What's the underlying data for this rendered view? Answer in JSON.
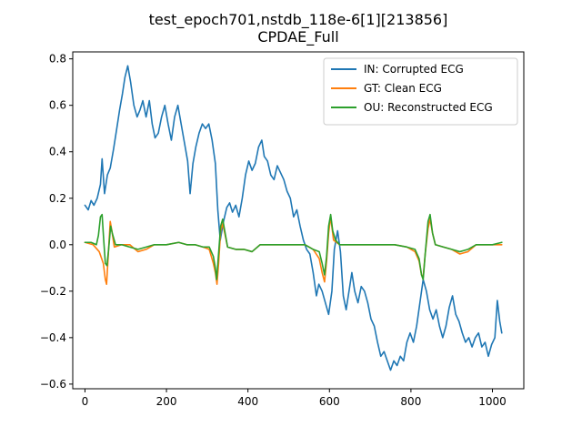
{
  "chart_data": {
    "type": "line",
    "title": "test_epoch701,nstdb_118e-6[1][213856]",
    "subtitle": "CPDAE_Full",
    "xlim": [
      -30,
      1077
    ],
    "ylim": [
      -0.62,
      0.83
    ],
    "x_ticks": [
      0,
      200,
      400,
      600,
      800,
      1000
    ],
    "y_ticks": [
      -0.6,
      -0.4,
      -0.2,
      0.0,
      0.2,
      0.4,
      0.6,
      0.8
    ],
    "x_tick_labels": [
      "0",
      "200",
      "400",
      "600",
      "800",
      "1000"
    ],
    "y_tick_labels": [
      "−0.6",
      "−0.4",
      "−0.2",
      "0.0",
      "0.2",
      "0.4",
      "0.6",
      "0.8"
    ],
    "grid": false,
    "legend_position": "upper right",
    "series": [
      {
        "name": "IN: Corrupted ECG",
        "color": "#1f77b4",
        "points": [
          [
            0,
            0.17
          ],
          [
            8,
            0.15
          ],
          [
            15,
            0.19
          ],
          [
            22,
            0.17
          ],
          [
            30,
            0.2
          ],
          [
            38,
            0.26
          ],
          [
            42,
            0.37
          ],
          [
            48,
            0.22
          ],
          [
            55,
            0.3
          ],
          [
            62,
            0.33
          ],
          [
            70,
            0.41
          ],
          [
            78,
            0.5
          ],
          [
            85,
            0.58
          ],
          [
            92,
            0.65
          ],
          [
            98,
            0.72
          ],
          [
            105,
            0.77
          ],
          [
            112,
            0.7
          ],
          [
            120,
            0.6
          ],
          [
            128,
            0.55
          ],
          [
            135,
            0.58
          ],
          [
            142,
            0.62
          ],
          [
            150,
            0.55
          ],
          [
            158,
            0.62
          ],
          [
            165,
            0.52
          ],
          [
            172,
            0.46
          ],
          [
            180,
            0.48
          ],
          [
            188,
            0.55
          ],
          [
            196,
            0.6
          ],
          [
            204,
            0.52
          ],
          [
            212,
            0.45
          ],
          [
            220,
            0.55
          ],
          [
            228,
            0.6
          ],
          [
            236,
            0.52
          ],
          [
            244,
            0.44
          ],
          [
            252,
            0.36
          ],
          [
            258,
            0.22
          ],
          [
            265,
            0.35
          ],
          [
            272,
            0.42
          ],
          [
            280,
            0.48
          ],
          [
            288,
            0.52
          ],
          [
            296,
            0.5
          ],
          [
            304,
            0.52
          ],
          [
            312,
            0.45
          ],
          [
            320,
            0.35
          ],
          [
            326,
            0.15
          ],
          [
            332,
            0.02
          ],
          [
            340,
            0.1
          ],
          [
            348,
            0.16
          ],
          [
            355,
            0.18
          ],
          [
            362,
            0.14
          ],
          [
            370,
            0.17
          ],
          [
            378,
            0.12
          ],
          [
            386,
            0.2
          ],
          [
            394,
            0.3
          ],
          [
            402,
            0.36
          ],
          [
            410,
            0.32
          ],
          [
            418,
            0.35
          ],
          [
            426,
            0.42
          ],
          [
            434,
            0.45
          ],
          [
            440,
            0.38
          ],
          [
            448,
            0.36
          ],
          [
            456,
            0.3
          ],
          [
            464,
            0.28
          ],
          [
            472,
            0.34
          ],
          [
            480,
            0.31
          ],
          [
            488,
            0.28
          ],
          [
            496,
            0.23
          ],
          [
            504,
            0.2
          ],
          [
            512,
            0.12
          ],
          [
            520,
            0.15
          ],
          [
            528,
            0.08
          ],
          [
            536,
            0.02
          ],
          [
            544,
            -0.02
          ],
          [
            552,
            -0.04
          ],
          [
            560,
            -0.12
          ],
          [
            568,
            -0.22
          ],
          [
            574,
            -0.17
          ],
          [
            582,
            -0.2
          ],
          [
            590,
            -0.25
          ],
          [
            598,
            -0.3
          ],
          [
            606,
            -0.2
          ],
          [
            612,
            -0.02
          ],
          [
            620,
            0.06
          ],
          [
            627,
            -0.03
          ],
          [
            634,
            -0.22
          ],
          [
            641,
            -0.28
          ],
          [
            648,
            -0.2
          ],
          [
            655,
            -0.12
          ],
          [
            662,
            -0.2
          ],
          [
            670,
            -0.25
          ],
          [
            678,
            -0.18
          ],
          [
            686,
            -0.2
          ],
          [
            694,
            -0.25
          ],
          [
            702,
            -0.32
          ],
          [
            710,
            -0.35
          ],
          [
            718,
            -0.42
          ],
          [
            726,
            -0.48
          ],
          [
            734,
            -0.46
          ],
          [
            742,
            -0.5
          ],
          [
            750,
            -0.54
          ],
          [
            758,
            -0.5
          ],
          [
            766,
            -0.52
          ],
          [
            774,
            -0.48
          ],
          [
            782,
            -0.5
          ],
          [
            790,
            -0.42
          ],
          [
            798,
            -0.38
          ],
          [
            806,
            -0.42
          ],
          [
            814,
            -0.35
          ],
          [
            822,
            -0.25
          ],
          [
            830,
            -0.15
          ],
          [
            838,
            -0.2
          ],
          [
            846,
            -0.28
          ],
          [
            854,
            -0.32
          ],
          [
            862,
            -0.28
          ],
          [
            870,
            -0.35
          ],
          [
            878,
            -0.4
          ],
          [
            886,
            -0.35
          ],
          [
            894,
            -0.27
          ],
          [
            902,
            -0.22
          ],
          [
            910,
            -0.3
          ],
          [
            918,
            -0.33
          ],
          [
            926,
            -0.38
          ],
          [
            934,
            -0.42
          ],
          [
            942,
            -0.4
          ],
          [
            950,
            -0.44
          ],
          [
            958,
            -0.4
          ],
          [
            966,
            -0.38
          ],
          [
            974,
            -0.44
          ],
          [
            982,
            -0.42
          ],
          [
            990,
            -0.48
          ],
          [
            998,
            -0.43
          ],
          [
            1006,
            -0.4
          ],
          [
            1012,
            -0.24
          ],
          [
            1018,
            -0.33
          ],
          [
            1023,
            -0.38
          ]
        ]
      },
      {
        "name": "GT: Clean ECG",
        "color": "#ff7f0e",
        "points": [
          [
            0,
            0.01
          ],
          [
            20,
            0.0
          ],
          [
            35,
            -0.03
          ],
          [
            45,
            -0.08
          ],
          [
            50,
            -0.15
          ],
          [
            53,
            -0.17
          ],
          [
            57,
            -0.05
          ],
          [
            62,
            0.1
          ],
          [
            66,
            0.06
          ],
          [
            72,
            -0.01
          ],
          [
            90,
            0.0
          ],
          [
            110,
            0.0
          ],
          [
            130,
            -0.03
          ],
          [
            150,
            -0.02
          ],
          [
            170,
            0.0
          ],
          [
            200,
            0.0
          ],
          [
            230,
            0.01
          ],
          [
            250,
            0.0
          ],
          [
            270,
            0.0
          ],
          [
            290,
            -0.01
          ],
          [
            305,
            -0.02
          ],
          [
            315,
            -0.08
          ],
          [
            320,
            -0.12
          ],
          [
            324,
            -0.17
          ],
          [
            328,
            -0.08
          ],
          [
            333,
            0.06
          ],
          [
            338,
            0.09
          ],
          [
            343,
            0.05
          ],
          [
            350,
            -0.01
          ],
          [
            370,
            -0.02
          ],
          [
            390,
            -0.02
          ],
          [
            410,
            -0.03
          ],
          [
            430,
            0.0
          ],
          [
            460,
            0.0
          ],
          [
            490,
            0.0
          ],
          [
            520,
            0.0
          ],
          [
            540,
            0.0
          ],
          [
            560,
            -0.02
          ],
          [
            575,
            -0.06
          ],
          [
            582,
            -0.12
          ],
          [
            588,
            -0.16
          ],
          [
            593,
            -0.07
          ],
          [
            598,
            0.05
          ],
          [
            603,
            0.12
          ],
          [
            610,
            0.02
          ],
          [
            625,
            0.0
          ],
          [
            650,
            0.0
          ],
          [
            680,
            0.0
          ],
          [
            700,
            0.0
          ],
          [
            730,
            0.0
          ],
          [
            760,
            0.0
          ],
          [
            790,
            -0.01
          ],
          [
            810,
            -0.03
          ],
          [
            820,
            -0.07
          ],
          [
            826,
            -0.13
          ],
          [
            830,
            -0.14
          ],
          [
            835,
            -0.04
          ],
          [
            842,
            0.07
          ],
          [
            847,
            0.11
          ],
          [
            853,
            0.05
          ],
          [
            860,
            0.0
          ],
          [
            880,
            -0.01
          ],
          [
            900,
            -0.02
          ],
          [
            920,
            -0.04
          ],
          [
            940,
            -0.03
          ],
          [
            960,
            0.0
          ],
          [
            980,
            0.0
          ],
          [
            1000,
            0.0
          ],
          [
            1023,
            0.0
          ]
        ]
      },
      {
        "name": "OU: Reconstructed ECG",
        "color": "#2ca02c",
        "points": [
          [
            0,
            0.01
          ],
          [
            15,
            0.01
          ],
          [
            28,
            0.0
          ],
          [
            33,
            0.04
          ],
          [
            38,
            0.12
          ],
          [
            42,
            0.13
          ],
          [
            46,
            0.02
          ],
          [
            50,
            -0.08
          ],
          [
            54,
            -0.09
          ],
          [
            58,
            -0.02
          ],
          [
            63,
            0.08
          ],
          [
            67,
            0.05
          ],
          [
            75,
            0.0
          ],
          [
            90,
            0.0
          ],
          [
            110,
            -0.01
          ],
          [
            130,
            -0.02
          ],
          [
            150,
            -0.01
          ],
          [
            170,
            0.0
          ],
          [
            200,
            0.0
          ],
          [
            230,
            0.01
          ],
          [
            250,
            0.0
          ],
          [
            270,
            0.0
          ],
          [
            290,
            -0.01
          ],
          [
            305,
            -0.01
          ],
          [
            315,
            -0.05
          ],
          [
            320,
            -0.1
          ],
          [
            323,
            -0.15
          ],
          [
            327,
            -0.06
          ],
          [
            333,
            0.08
          ],
          [
            338,
            0.11
          ],
          [
            343,
            0.06
          ],
          [
            350,
            -0.01
          ],
          [
            370,
            -0.02
          ],
          [
            390,
            -0.02
          ],
          [
            410,
            -0.03
          ],
          [
            430,
            0.0
          ],
          [
            460,
            0.0
          ],
          [
            490,
            0.0
          ],
          [
            520,
            0.0
          ],
          [
            540,
            0.0
          ],
          [
            560,
            -0.02
          ],
          [
            575,
            -0.03
          ],
          [
            582,
            -0.08
          ],
          [
            588,
            -0.13
          ],
          [
            593,
            -0.05
          ],
          [
            598,
            0.08
          ],
          [
            603,
            0.13
          ],
          [
            608,
            0.06
          ],
          [
            615,
            0.02
          ],
          [
            625,
            0.0
          ],
          [
            650,
            0.0
          ],
          [
            680,
            0.0
          ],
          [
            700,
            0.0
          ],
          [
            730,
            0.0
          ],
          [
            760,
            0.0
          ],
          [
            790,
            -0.01
          ],
          [
            810,
            -0.02
          ],
          [
            820,
            -0.06
          ],
          [
            826,
            -0.13
          ],
          [
            830,
            -0.15
          ],
          [
            835,
            -0.04
          ],
          [
            842,
            0.1
          ],
          [
            847,
            0.13
          ],
          [
            853,
            0.05
          ],
          [
            860,
            0.0
          ],
          [
            880,
            -0.01
          ],
          [
            900,
            -0.02
          ],
          [
            920,
            -0.03
          ],
          [
            940,
            -0.02
          ],
          [
            960,
            0.0
          ],
          [
            980,
            0.0
          ],
          [
            1000,
            0.0
          ],
          [
            1023,
            0.01
          ]
        ]
      }
    ]
  }
}
